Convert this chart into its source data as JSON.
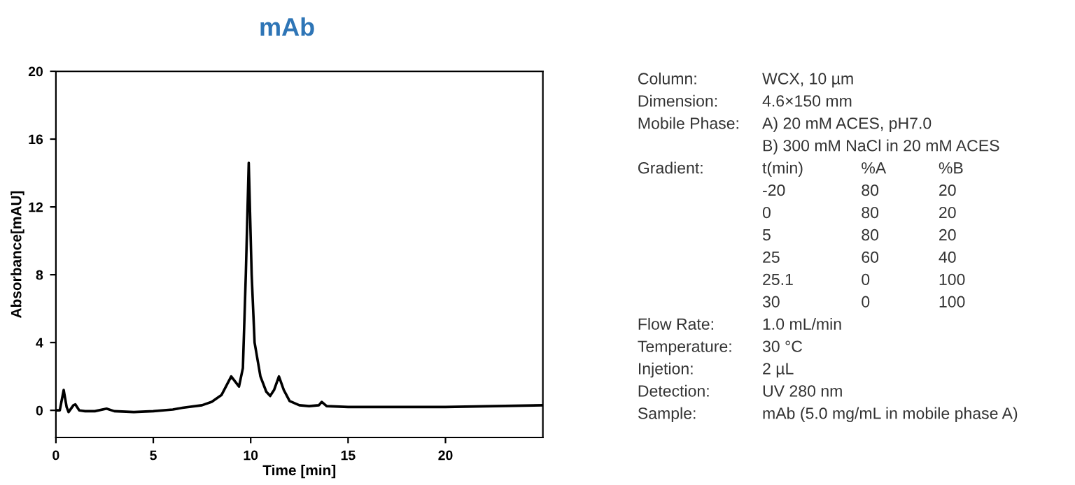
{
  "chart_data": [
    {
      "type": "line",
      "title": "mAb",
      "xlabel": "Time [min]",
      "ylabel": "Absorbance[mAU]",
      "series": [
        {
          "color": "#000000",
          "x": [
            0,
            0.2,
            0.4,
            0.55,
            0.65,
            0.9,
            1.0,
            1.2,
            1.5,
            2.0,
            2.6,
            3.0,
            4.0,
            5.0,
            6.0,
            6.5,
            7.5,
            8.0,
            8.5,
            9.0,
            9.4,
            9.6,
            9.75,
            9.9,
            10.05,
            10.2,
            10.5,
            10.8,
            11.0,
            11.2,
            11.45,
            11.7,
            12.0,
            12.5,
            13.0,
            13.5,
            13.65,
            13.9,
            15.0,
            20.0,
            25.0
          ],
          "values": [
            0,
            0,
            1.2,
            0.2,
            -0.1,
            0.3,
            0.35,
            0,
            -0.05,
            -0.05,
            0.1,
            -0.05,
            -0.1,
            -0.05,
            0.05,
            0.15,
            0.3,
            0.5,
            0.9,
            2.0,
            1.4,
            2.5,
            8,
            14.6,
            8,
            4,
            2.0,
            1.1,
            0.85,
            1.2,
            2.0,
            1.2,
            0.55,
            0.3,
            0.25,
            0.3,
            0.5,
            0.25,
            0.2,
            0.2,
            0.3
          ]
        }
      ],
      "xlim": [
        0,
        25
      ],
      "ylim": [
        -1.6,
        20
      ],
      "xticks": [
        0,
        5,
        10,
        15,
        20
      ],
      "yticks": [
        0,
        4,
        8,
        12,
        16,
        20
      ],
      "marker": "none",
      "line_style": "solid"
    },
    {
      "type": "other",
      "annotations": [
        "Column:\tWCX, 10 µm",
        "Dimension:\t4.6×150 mm",
        "Mobile Phase:\tA) 20 mM ACES, pH7.0",
        "\tB) 300 mM NaCl in 20 mM ACES",
        "Gradient:\tt(min)\t%A\t%B",
        "\t-20\t80\t20",
        "\t0\t80\t20",
        "\t5\t80\t20",
        "\t25\t60\t40",
        "\t25.1\t0\t100",
        "\t30\t0\t100",
        "Flow Rate:\t1.0 mL/min",
        "Temperature:\t30 °C",
        "Injetion:\t2 µL",
        "Detection:\tUV 280 nm",
        "Sample:\tmAb (5.0 mg/mL in mobile phase A)"
      ]
    }
  ]
}
